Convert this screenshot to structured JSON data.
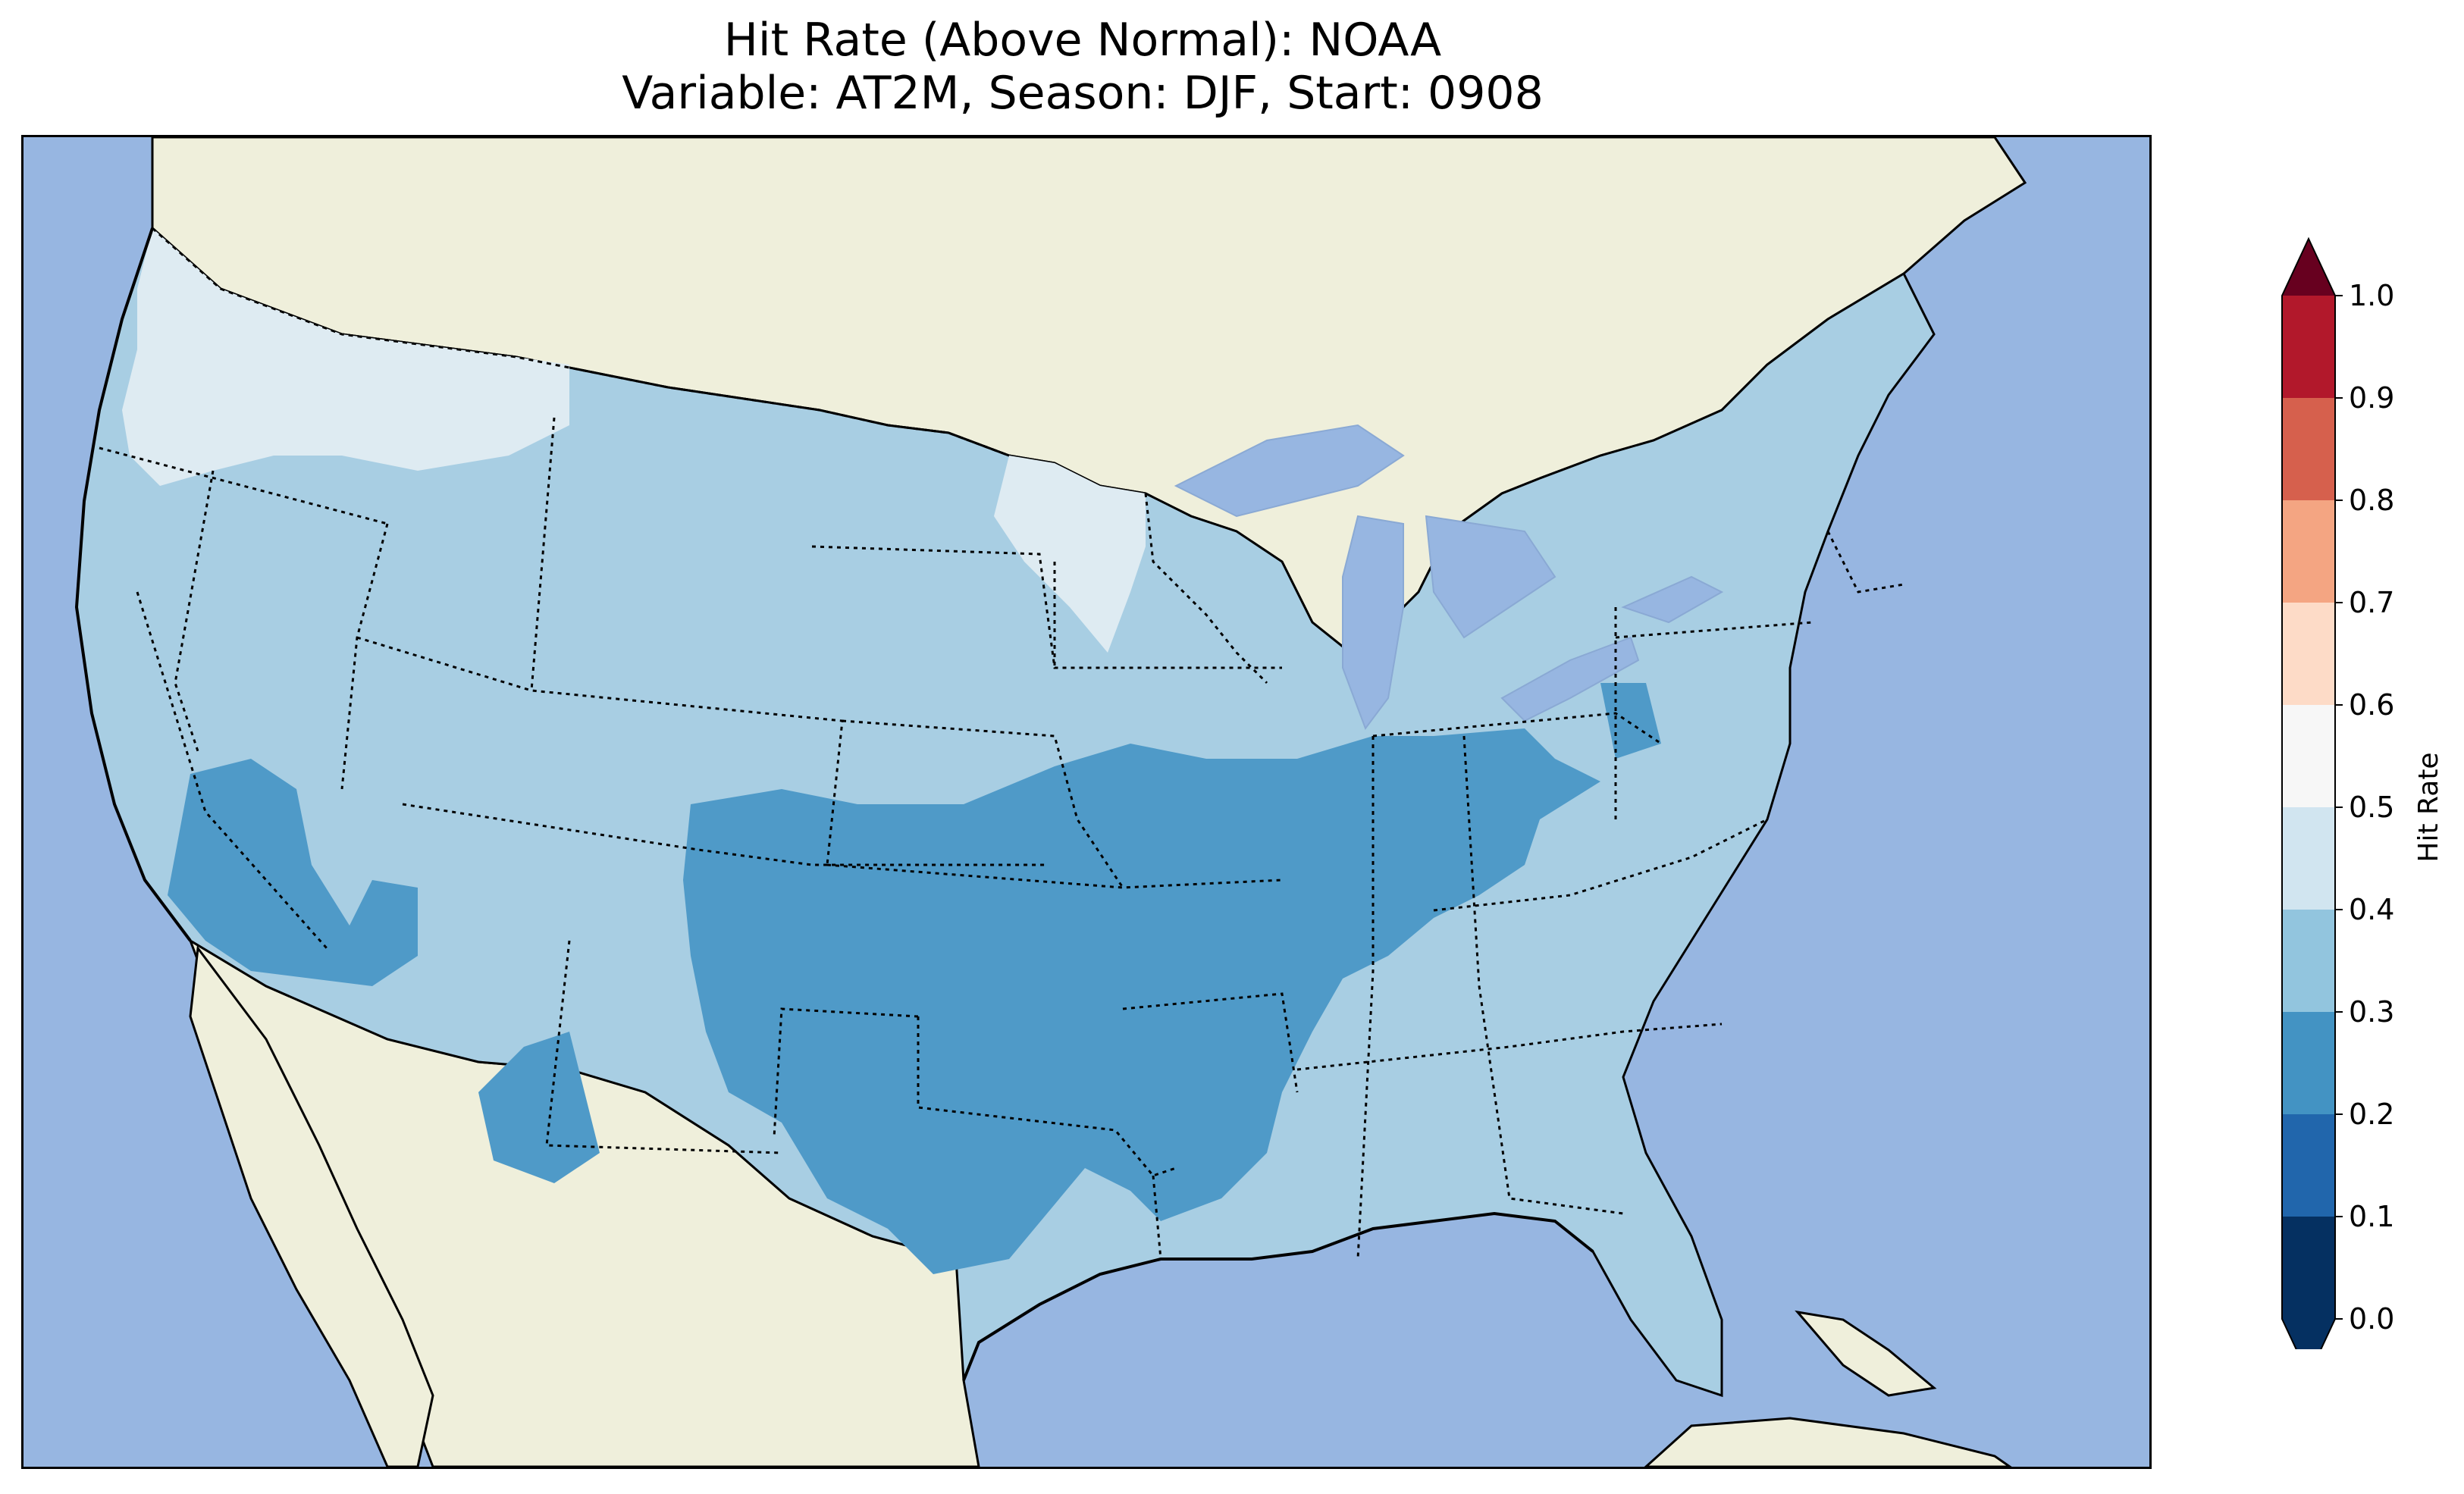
{
  "title": {
    "line1": "Hit Rate (Above Normal): NOAA",
    "line2": "Variable: AT2M, Season: DJF, Start: 0908"
  },
  "map": {
    "region": "Contiguous United States",
    "colors": {
      "ocean": "#97b6e1",
      "land": "#efefdb",
      "lakes": "#97b6e1"
    }
  },
  "colorbar": {
    "label": "Hit Rate",
    "levels": [
      0.0,
      0.1,
      0.2,
      0.3,
      0.4,
      0.5,
      0.6,
      0.7,
      0.8,
      0.9,
      1.0
    ],
    "tick_labels": [
      "0.0",
      "0.1",
      "0.2",
      "0.3",
      "0.4",
      "0.5",
      "0.6",
      "0.7",
      "0.8",
      "0.9",
      "1.0"
    ],
    "colors": [
      "#053061",
      "#2166ac",
      "#4393c3",
      "#92c5de",
      "#d1e5f0",
      "#f7f7f7",
      "#fddbc7",
      "#f4a582",
      "#d6604d",
      "#b2182b",
      "#67001f"
    ],
    "extend": "both"
  },
  "chart_data": {
    "type": "heatmap",
    "title": "Hit Rate (Above Normal): NOAA\nVariable: AT2M, Season: DJF, Start: 0908",
    "colorbar_label": "Hit Rate",
    "range": [
      0.0,
      1.0
    ],
    "bins": [
      {
        "range": [
          0.2,
          0.3
        ],
        "color": "#4f9ac8",
        "regions": [
          "Central Plains",
          "Southern Plains / Oklahoma / Texas",
          "Ohio Valley",
          "Southern California / Nevada",
          "Lower Mississippi Valley"
        ]
      },
      {
        "range": [
          0.3,
          0.4
        ],
        "color": "#a8cee3",
        "regions": [
          "Most of the remaining contiguous US"
        ]
      },
      {
        "range": [
          0.4,
          0.5
        ],
        "color": "#deebf2",
        "regions": [
          "Pacific Northwest",
          "Northern Rockies",
          "Northern Minnesota"
        ]
      }
    ]
  }
}
